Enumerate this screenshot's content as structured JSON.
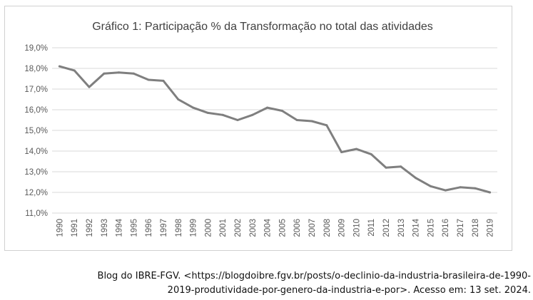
{
  "chart_data": {
    "type": "line",
    "title": "Gráfico 1: Participação % da Transformação no total das atividades",
    "xlabel": "",
    "ylabel": "",
    "x": [
      "1990",
      "1991",
      "1992",
      "1993",
      "1994",
      "1995",
      "1996",
      "1997",
      "1998",
      "1999",
      "2000",
      "2001",
      "2002",
      "2003",
      "2004",
      "2005",
      "2006",
      "2007",
      "2008",
      "2009",
      "2010",
      "2011",
      "2012",
      "2013",
      "2014",
      "2015",
      "2016",
      "2017",
      "2018",
      "2019"
    ],
    "series": [
      {
        "values": [
          18.1,
          17.9,
          17.1,
          17.75,
          17.8,
          17.75,
          17.45,
          17.4,
          16.5,
          16.1,
          15.85,
          15.75,
          15.5,
          15.75,
          16.1,
          15.95,
          15.5,
          15.45,
          15.25,
          13.95,
          14.1,
          13.85,
          13.2,
          13.25,
          12.7,
          12.3,
          12.1,
          12.25,
          12.2,
          12.0
        ],
        "color": "#7f7f7f"
      }
    ],
    "yticks": [
      "11,0%",
      "12,0%",
      "13,0%",
      "14,0%",
      "15,0%",
      "16,0%",
      "17,0%",
      "18,0%",
      "19,0%"
    ],
    "ylim": [
      11,
      19
    ],
    "grid": true,
    "legend": "none",
    "gridline_color": "#d9d9d9"
  },
  "source": {
    "line1": "Blog do IBRE-FGV. <https://blogdoibre.fgv.br/posts/o-declinio-da-industria-brasileira-de-1990-",
    "line2": "2019-produtividade-por-genero-da-industria-e-por>. Acesso em: 13 set. 2024."
  }
}
